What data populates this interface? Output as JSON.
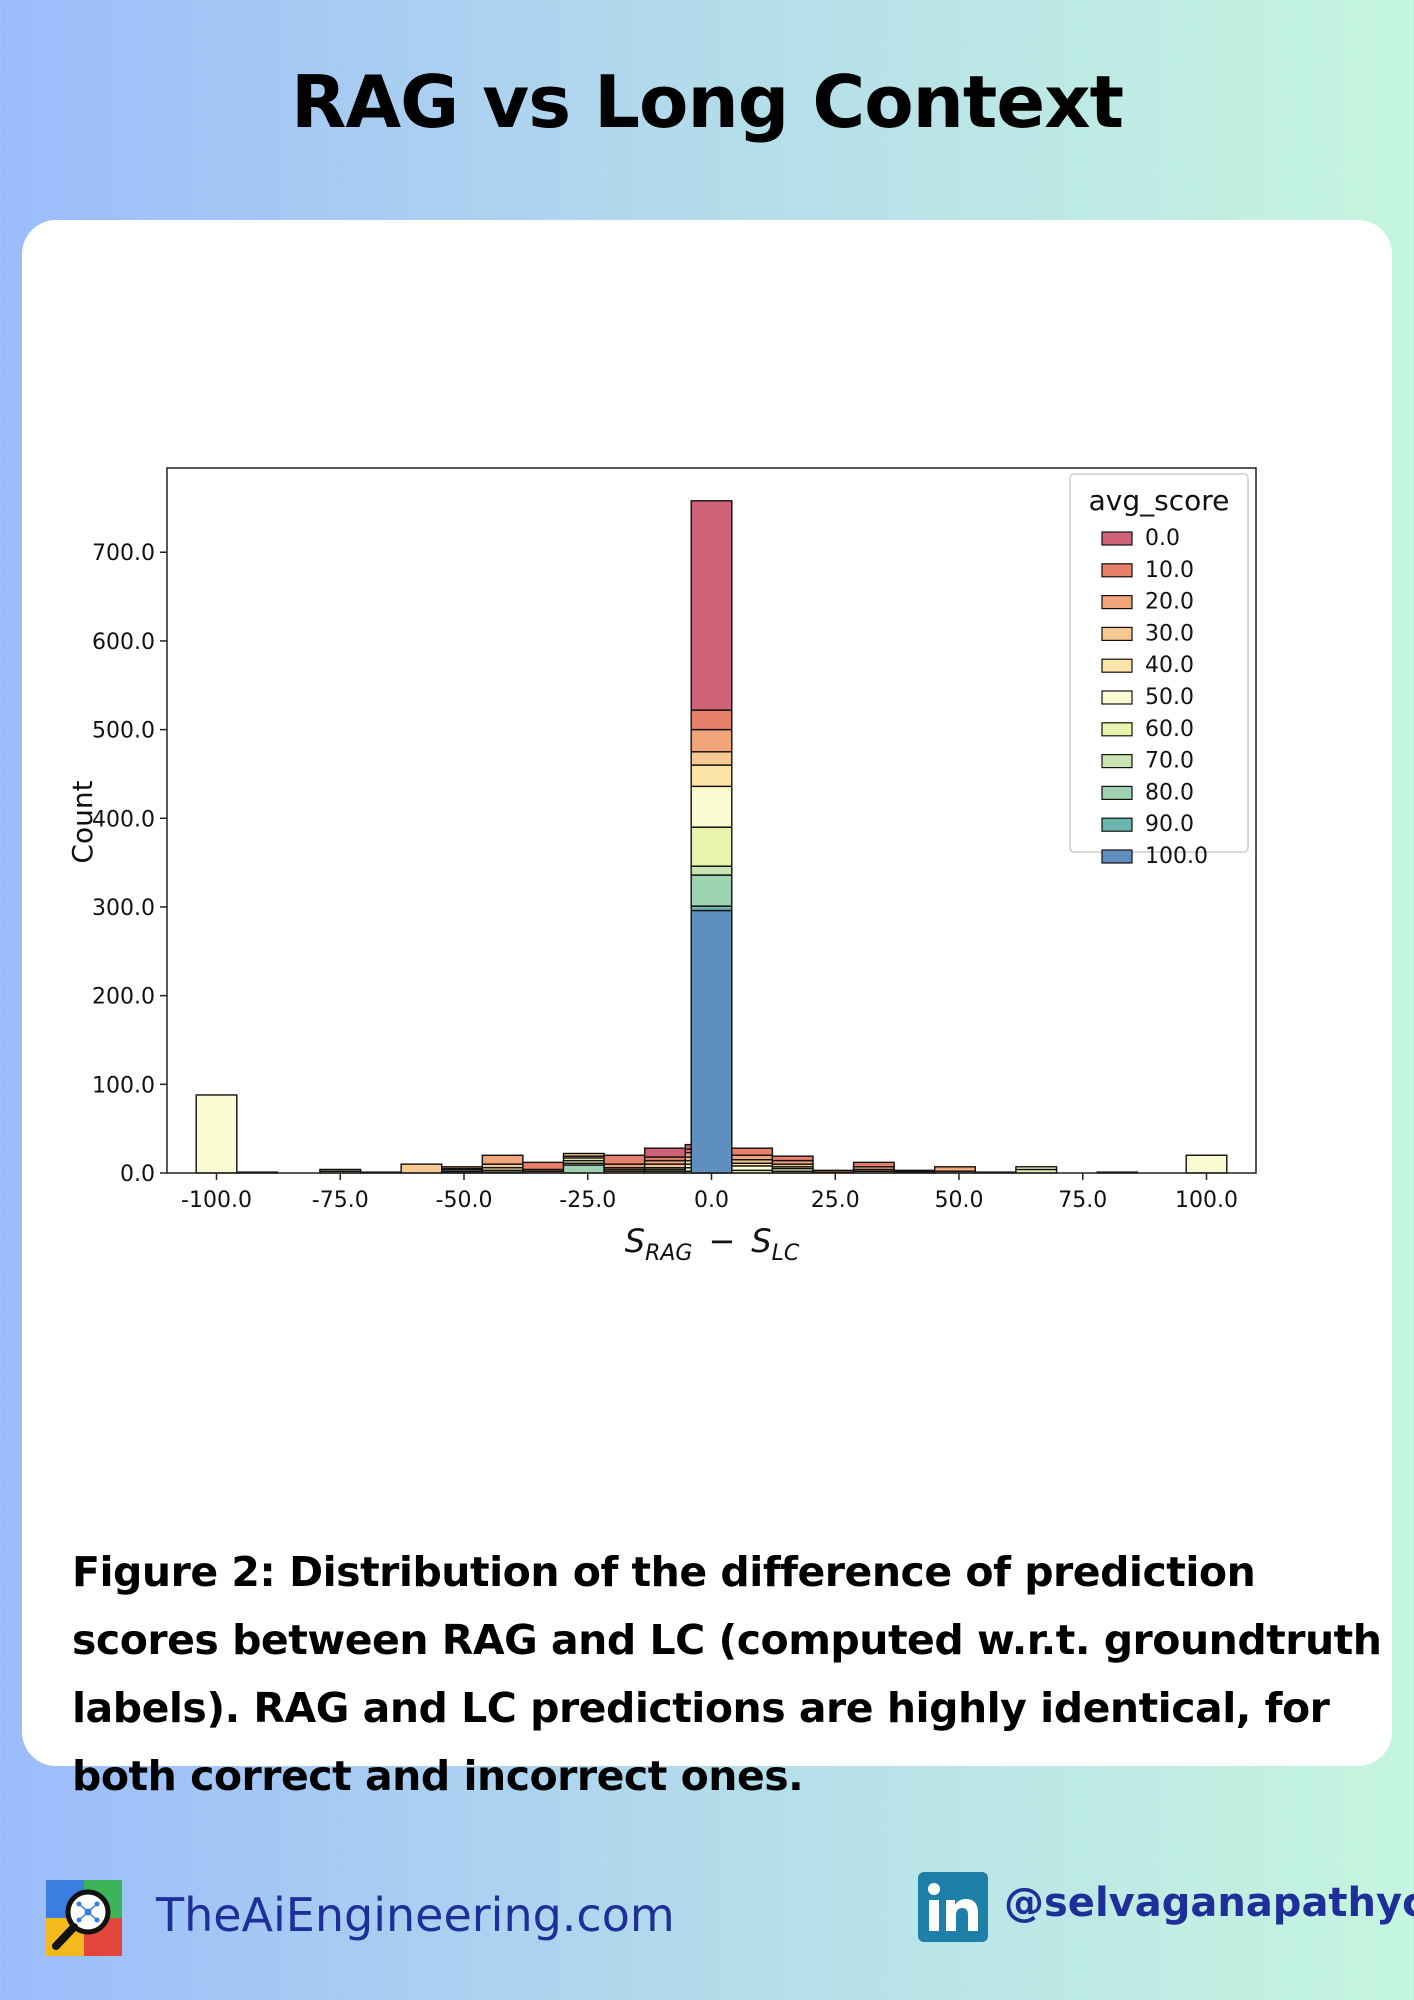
{
  "page": {
    "title": "RAG vs Long Context",
    "caption": "Figure 2: Distribution of the difference of prediction scores between RAG and LC (computed w.r.t. groundtruth labels). RAG and LC predictions are highly identical, for both correct and incorrect ones."
  },
  "footer": {
    "site": "TheAiEngineering.com",
    "handle": "@selvaganapathyc",
    "logo_icon": "magnifier-network-icon",
    "linkedin_icon": "linkedin-icon",
    "text_color": "#1f2f9a"
  },
  "chart_data": {
    "type": "bar",
    "stacked": true,
    "title": "",
    "xlabel_base": "S",
    "xlabel_sub1": "RAG",
    "xlabel_minus": "−",
    "xlabel_sub2": "LC",
    "ylabel": "Count",
    "xlim": [
      -110,
      110
    ],
    "ylim": [
      0,
      795
    ],
    "bin_width": 8.2,
    "x_ticks": [
      -100,
      -75,
      -50,
      -25,
      0,
      25,
      50,
      75,
      100
    ],
    "x_tick_labels": [
      "-100.0",
      "-75.0",
      "-50.0",
      "-25.0",
      "0.0",
      "25.0",
      "50.0",
      "75.0",
      "100.0"
    ],
    "y_ticks": [
      0,
      100,
      200,
      300,
      400,
      500,
      600,
      700
    ],
    "y_tick_labels": [
      "0.0",
      "100.0",
      "200.0",
      "300.0",
      "400.0",
      "500.0",
      "600.0",
      "700.0"
    ],
    "legend_title": "avg_score",
    "legend_position": "top-right",
    "series": [
      {
        "name": "0.0",
        "color": "#cf6277"
      },
      {
        "name": "10.0",
        "color": "#e6806a"
      },
      {
        "name": "20.0",
        "color": "#f1a579"
      },
      {
        "name": "30.0",
        "color": "#f8c892"
      },
      {
        "name": "40.0",
        "color": "#fbe5a9"
      },
      {
        "name": "50.0",
        "color": "#fbfbd2"
      },
      {
        "name": "60.0",
        "color": "#eaf3ae"
      },
      {
        "name": "70.0",
        "color": "#c9e6b2"
      },
      {
        "name": "80.0",
        "color": "#9ed2b0"
      },
      {
        "name": "90.0",
        "color": "#6cb5b0"
      },
      {
        "name": "100.0",
        "color": "#5f8fbf"
      }
    ],
    "bins": [
      {
        "x": -100,
        "counts": [
          0,
          0,
          0,
          0,
          0,
          88,
          0,
          0,
          0,
          0,
          0
        ]
      },
      {
        "x": -91.8,
        "counts": [
          0,
          0,
          0,
          0,
          0,
          0,
          1,
          0,
          0,
          0,
          0
        ]
      },
      {
        "x": -75,
        "counts": [
          0,
          0,
          0,
          0,
          2,
          2,
          0,
          0,
          0,
          0,
          0
        ]
      },
      {
        "x": -66.8,
        "counts": [
          0,
          0,
          0,
          0,
          1,
          0,
          0,
          0,
          0,
          0,
          0
        ]
      },
      {
        "x": -58.6,
        "counts": [
          0,
          0,
          0,
          10,
          0,
          0,
          0,
          0,
          0,
          0,
          0
        ]
      },
      {
        "x": -50.4,
        "counts": [
          0,
          0,
          2,
          1,
          2,
          1,
          1,
          0,
          0,
          0,
          0
        ]
      },
      {
        "x": -42.2,
        "counts": [
          0,
          0,
          10,
          4,
          3,
          2,
          1,
          0,
          0,
          0,
          0
        ]
      },
      {
        "x": -34,
        "counts": [
          0,
          8,
          2,
          0,
          2,
          0,
          0,
          0,
          0,
          0,
          0
        ]
      },
      {
        "x": -25.8,
        "counts": [
          0,
          0,
          0,
          3,
          2,
          3,
          3,
          2,
          9,
          0,
          0
        ]
      },
      {
        "x": -17.6,
        "counts": [
          0,
          10,
          4,
          2,
          2,
          2,
          0,
          0,
          0,
          0,
          0
        ]
      },
      {
        "x": -9.4,
        "counts": [
          10,
          4,
          4,
          4,
          2,
          2,
          2,
          0,
          0,
          0,
          0
        ]
      },
      {
        "x": -1.2,
        "counts": [
          5,
          4,
          5,
          4,
          4,
          4,
          4,
          2,
          0,
          0,
          0
        ]
      },
      {
        "x": 0,
        "counts": [
          236,
          22,
          25,
          15,
          24,
          46,
          44,
          10,
          35,
          5,
          296
        ]
      },
      {
        "x": 8.2,
        "counts": [
          0,
          8,
          5,
          4,
          3,
          5,
          3,
          0,
          0,
          0,
          0
        ]
      },
      {
        "x": 16.4,
        "counts": [
          0,
          5,
          4,
          3,
          2,
          3,
          2,
          0,
          0,
          0,
          0
        ]
      },
      {
        "x": 24.6,
        "counts": [
          0,
          0,
          2,
          1,
          0,
          0,
          0,
          0,
          0,
          0,
          0
        ]
      },
      {
        "x": 32.8,
        "counts": [
          0,
          5,
          3,
          2,
          2,
          0,
          0,
          0,
          0,
          0,
          0
        ]
      },
      {
        "x": 41,
        "counts": [
          0,
          0,
          1,
          1,
          0,
          1,
          0,
          0,
          0,
          0,
          0
        ]
      },
      {
        "x": 49.2,
        "counts": [
          0,
          0,
          5,
          2,
          0,
          0,
          0,
          0,
          0,
          0,
          0
        ]
      },
      {
        "x": 57.4,
        "counts": [
          0,
          0,
          0,
          0,
          1,
          0,
          0,
          0,
          0,
          0,
          0
        ]
      },
      {
        "x": 65.6,
        "counts": [
          0,
          0,
          0,
          0,
          0,
          3,
          4,
          0,
          0,
          0,
          0
        ]
      },
      {
        "x": 82,
        "counts": [
          0,
          0,
          0,
          0,
          0,
          0,
          1,
          0,
          0,
          0,
          0
        ]
      },
      {
        "x": 100,
        "counts": [
          0,
          0,
          0,
          0,
          0,
          20,
          0,
          0,
          0,
          0,
          0
        ]
      }
    ]
  }
}
